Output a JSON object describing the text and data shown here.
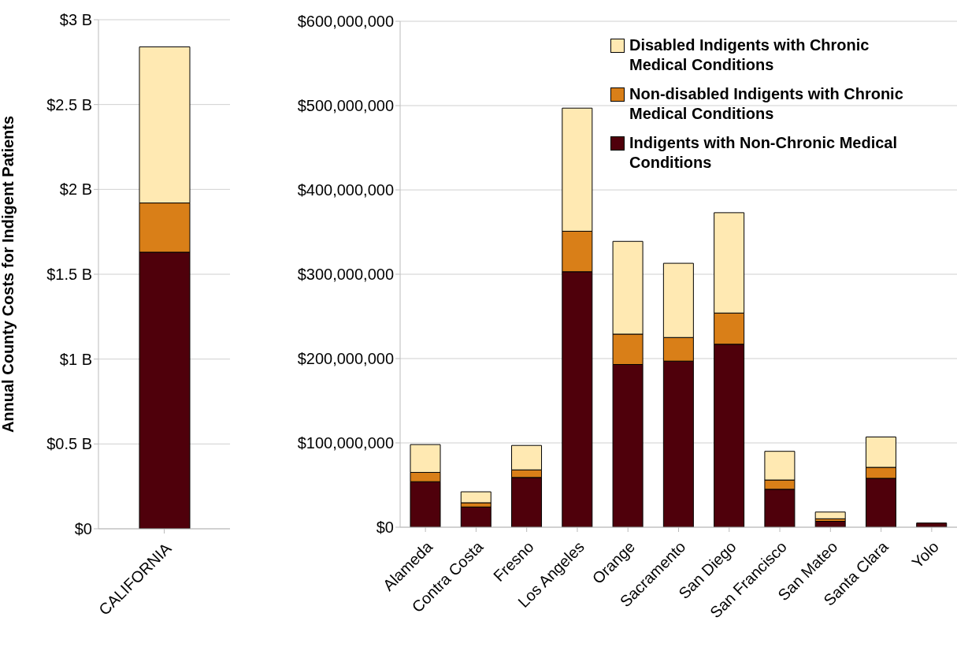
{
  "chart_data": [
    {
      "type": "bar",
      "stacked": true,
      "ylabel": "Annual County Costs for Indigent Patients",
      "categories": [
        "CALIFORNIA"
      ],
      "ylim": [
        0,
        3
      ],
      "yticks": [
        {
          "value": 0,
          "label": "$0"
        },
        {
          "value": 0.5,
          "label": "$0.5 B"
        },
        {
          "value": 1,
          "label": "$1 B"
        },
        {
          "value": 1.5,
          "label": "$1.5 B"
        },
        {
          "value": 2,
          "label": "$2 B"
        },
        {
          "value": 2.5,
          "label": "$2.5 B"
        },
        {
          "value": 3,
          "label": "$3 B"
        }
      ],
      "grid": "y",
      "legend": false,
      "series": [
        {
          "color": "#4f000b",
          "values": [
            1.63
          ]
        },
        {
          "color": "#d97f18",
          "values": [
            0.29
          ]
        },
        {
          "color": "#ffe9b2",
          "values": [
            0.92
          ]
        }
      ]
    },
    {
      "type": "bar",
      "stacked": true,
      "categories": [
        "Alameda",
        "Contra Costa",
        "Fresno",
        "Los Angeles",
        "Orange",
        "Sacramento",
        "San Diego",
        "San Francisco",
        "San Mateo",
        "Santa Clara",
        "Yolo"
      ],
      "ylim": [
        0,
        600000000
      ],
      "yticks": [
        {
          "value": 0,
          "label": "$0"
        },
        {
          "value": 100000000,
          "label": "$100,000,000"
        },
        {
          "value": 200000000,
          "label": "$200,000,000"
        },
        {
          "value": 300000000,
          "label": "$300,000,000"
        },
        {
          "value": 400000000,
          "label": "$400,000,000"
        },
        {
          "value": 500000000,
          "label": "$500,000,000"
        },
        {
          "value": 600000000,
          "label": "$600,000,000"
        }
      ],
      "grid": "y",
      "legend": "top right",
      "series": [
        {
          "name": "Indigents with Non-Chronic Medical Conditions",
          "color": "#4f000b",
          "values": [
            54000000,
            24000000,
            59000000,
            303000000,
            193000000,
            197000000,
            217000000,
            45000000,
            7000000,
            58000000,
            5000000
          ]
        },
        {
          "name": "Non-disabled Indigents with Chronic Medical Conditions",
          "color": "#d97f18",
          "values": [
            11000000,
            5000000,
            9000000,
            48000000,
            36000000,
            28000000,
            37000000,
            11000000,
            3000000,
            13000000,
            null
          ]
        },
        {
          "name": "Disabled Indigents with Chronic Medical Conditions",
          "color": "#ffe9b2",
          "values": [
            33000000,
            13000000,
            29000000,
            146000000,
            110000000,
            88000000,
            119000000,
            34000000,
            8000000,
            36000000,
            null
          ]
        }
      ]
    }
  ]
}
